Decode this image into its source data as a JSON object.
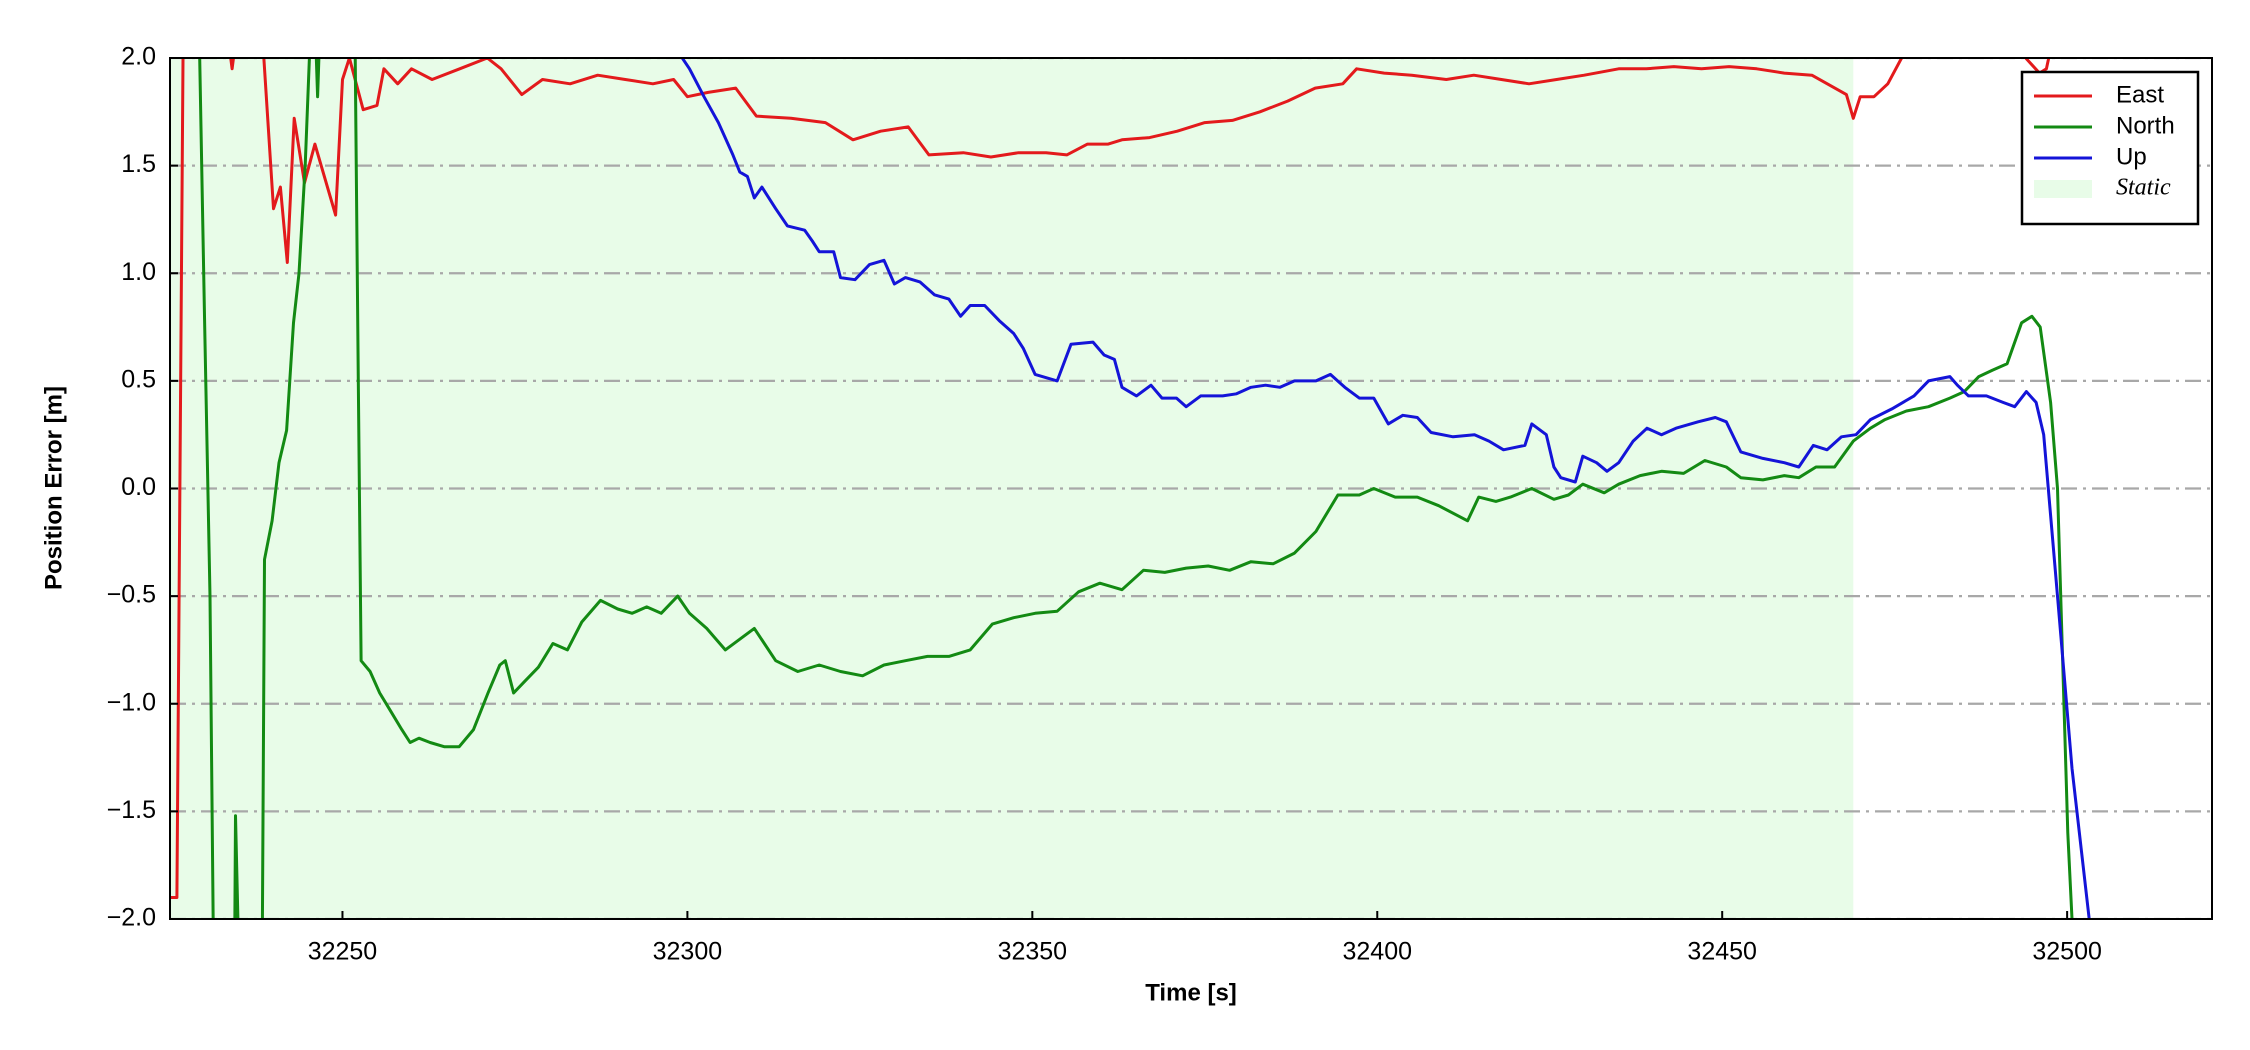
{
  "chart_data": {
    "type": "line",
    "xlabel": "Time [s]",
    "ylabel": "Position Error [m]",
    "xlim": [
      32225,
      32521
    ],
    "ylim": [
      -2,
      2
    ],
    "xticks": [
      32250,
      32300,
      32350,
      32400,
      32450,
      32500
    ],
    "yticks": [
      {
        "value": -2,
        "label": "−2.0"
      },
      {
        "value": -1.5,
        "label": "−1.5"
      },
      {
        "value": -1,
        "label": "−1.0"
      },
      {
        "value": -0.5,
        "label": "−0.5"
      },
      {
        "value": 0,
        "label": "0.0"
      },
      {
        "value": 0.5,
        "label": "0.5"
      },
      {
        "value": 1,
        "label": "1.0"
      },
      {
        "value": 1.5,
        "label": "1.5"
      },
      {
        "value": 2,
        "label": "2.0"
      }
    ],
    "grid": true,
    "legend": "upper right",
    "shaded_regions": [
      {
        "name": "Static",
        "x": [
          32225,
          32469
        ],
        "color": "#e8fce8"
      }
    ],
    "series": [
      {
        "name": "East",
        "color": "#e31a1c",
        "x": [
          32224,
          32226,
          32227,
          32233,
          32234,
          32235,
          32238,
          32240,
          32241,
          32242,
          32243,
          32244.5,
          32246,
          32249,
          32250,
          32251,
          32253,
          32255,
          32256,
          32258,
          32260,
          32263,
          32267,
          32271,
          32273,
          32276,
          32279,
          32283,
          32287,
          32291,
          32295,
          32298,
          32300,
          32303,
          32307,
          32310,
          32315,
          32320,
          32324,
          32328,
          32332,
          32335,
          32340,
          32344,
          32348,
          32352,
          32355,
          32358,
          32361,
          32363,
          32367,
          32371,
          32375,
          32379,
          32383,
          32387,
          32391,
          32395,
          32397,
          32401,
          32405,
          32410,
          32414,
          32418,
          32422,
          32426,
          32430,
          32435,
          32439,
          32443,
          32447,
          32451,
          32455,
          32459,
          32463,
          32468,
          32469,
          32470,
          32472,
          32474,
          32476,
          32478,
          32493,
          32494,
          32496,
          32497,
          32498,
          32500
        ],
        "values": [
          -1.9,
          -1.9,
          2.5,
          2.2,
          1.95,
          2.2,
          2.3,
          1.3,
          1.4,
          1.05,
          1.72,
          1.42,
          1.6,
          1.27,
          1.9,
          2.0,
          1.76,
          1.78,
          1.95,
          1.88,
          1.95,
          1.9,
          1.95,
          2.0,
          1.95,
          1.83,
          1.9,
          1.88,
          1.92,
          1.9,
          1.88,
          1.9,
          1.82,
          1.84,
          1.86,
          1.73,
          1.72,
          1.7,
          1.62,
          1.66,
          1.68,
          1.55,
          1.56,
          1.54,
          1.56,
          1.56,
          1.55,
          1.6,
          1.6,
          1.62,
          1.63,
          1.66,
          1.7,
          1.71,
          1.75,
          1.8,
          1.86,
          1.88,
          1.95,
          1.93,
          1.92,
          1.9,
          1.92,
          1.9,
          1.88,
          1.9,
          1.92,
          1.95,
          1.95,
          1.96,
          1.95,
          1.96,
          1.95,
          1.93,
          1.92,
          1.83,
          1.72,
          1.82,
          1.82,
          1.88,
          2.0,
          2.3,
          2.2,
          2.0,
          1.93,
          1.95,
          2.1,
          2.5
        ]
      },
      {
        "name": "North",
        "color": "#138a13",
        "x": [
          32228.9,
          32229.3,
          32230,
          32230.8,
          32231.4,
          32234.3,
          32234.5,
          32235.2,
          32238.3,
          32238.7,
          32239.8,
          32240.8,
          32241.9,
          32242.9,
          32243.7,
          32244.6,
          32245.2,
          32246,
          32246.4,
          32247.1,
          32251.7,
          32252.3,
          32252.7,
          32254.0,
          32255.4,
          32256.9,
          32258.6,
          32259.8,
          32261.1,
          32262.7,
          32264.8,
          32266.9,
          32269.0,
          32271.1,
          32272.8,
          32273.6,
          32274.8,
          32276.3,
          32278.4,
          32280.5,
          32282.6,
          32284.7,
          32287.4,
          32289.9,
          32292.0,
          32294.1,
          32296.2,
          32298.6,
          32300.3,
          32302.8,
          32305.5,
          32307.6,
          32309.7,
          32312.8,
          32316.0,
          32319.1,
          32322.2,
          32325.4,
          32328.5,
          32331.6,
          32334.8,
          32337.9,
          32341.0,
          32344.2,
          32347.3,
          32350.4,
          32353.6,
          32356.7,
          32359.8,
          32363.0,
          32366.1,
          32369.2,
          32372.3,
          32375.5,
          32378.6,
          32381.7,
          32384.9,
          32388.0,
          32391.1,
          32394.3,
          32397.4,
          32399.5,
          32402.6,
          32405.8,
          32408.9,
          32413.1,
          32414.7,
          32417.2,
          32419.3,
          32422.4,
          32425.6,
          32427.7,
          32429.8,
          32432.9,
          32435.0,
          32438.1,
          32441.2,
          32444.4,
          32447.5,
          32450.6,
          32452.7,
          32455.9,
          32459.0,
          32461.1,
          32463.6,
          32466.3,
          32469.0,
          32471.5,
          32473.6,
          32476.7,
          32479.9,
          32483.0,
          32485.1,
          32487.2,
          32489.2,
          32491.3,
          32493.4,
          32494.9,
          32496.1,
          32497.6,
          32498.6,
          32500.1,
          32500.7
        ],
        "values": [
          2.5,
          2.0,
          0.8,
          -0.5,
          -2.5,
          -2.5,
          -1.52,
          -2.5,
          -2.5,
          -0.33,
          -0.15,
          0.12,
          0.27,
          0.77,
          1.0,
          1.5,
          2.0,
          2.2,
          1.82,
          2.5,
          2.5,
          0.5,
          -0.8,
          -0.85,
          -0.95,
          -1.03,
          -1.12,
          -1.18,
          -1.16,
          -1.18,
          -1.2,
          -1.2,
          -1.12,
          -0.95,
          -0.82,
          -0.8,
          -0.95,
          -0.9,
          -0.83,
          -0.72,
          -0.75,
          -0.62,
          -0.52,
          -0.56,
          -0.58,
          -0.55,
          -0.58,
          -0.5,
          -0.58,
          -0.65,
          -0.75,
          -0.7,
          -0.65,
          -0.8,
          -0.85,
          -0.82,
          -0.85,
          -0.87,
          -0.82,
          -0.8,
          -0.78,
          -0.78,
          -0.75,
          -0.63,
          -0.6,
          -0.58,
          -0.57,
          -0.48,
          -0.44,
          -0.47,
          -0.38,
          -0.39,
          -0.37,
          -0.36,
          -0.38,
          -0.34,
          -0.35,
          -0.3,
          -0.2,
          -0.03,
          -0.03,
          0.0,
          -0.04,
          -0.04,
          -0.08,
          -0.15,
          -0.04,
          -0.06,
          -0.04,
          0.0,
          -0.05,
          -0.03,
          0.02,
          -0.02,
          0.02,
          0.06,
          0.08,
          0.07,
          0.13,
          0.1,
          0.05,
          0.04,
          0.06,
          0.05,
          0.1,
          0.1,
          0.22,
          0.28,
          0.32,
          0.36,
          0.38,
          0.42,
          0.45,
          0.52,
          0.55,
          0.58,
          0.77,
          0.8,
          0.75,
          0.4,
          0.0,
          -1.6,
          -2.0
        ]
      },
      {
        "name": "Up",
        "color": "#1414d8",
        "x": [
          32298.2,
          32300.3,
          32302.4,
          32304.5,
          32306.6,
          32307.6,
          32308.7,
          32309.7,
          32310.8,
          32312.8,
          32314.5,
          32317.0,
          32318.1,
          32319.1,
          32321.2,
          32322.2,
          32324.3,
          32326.4,
          32328.5,
          32330.0,
          32331.6,
          32333.7,
          32335.8,
          32337.9,
          32339.6,
          32341.0,
          32343.1,
          32345.2,
          32347.3,
          32348.7,
          32350.4,
          32353.6,
          32355.6,
          32358.8,
          32360.4,
          32361.9,
          32363.0,
          32365.1,
          32367.2,
          32368.8,
          32370.9,
          32372.3,
          32374.4,
          32377.6,
          32379.6,
          32381.7,
          32383.8,
          32385.9,
          32388.0,
          32391.1,
          32393.2,
          32395.3,
          32397.4,
          32399.5,
          32401.6,
          32403.7,
          32405.8,
          32407.8,
          32411.0,
          32414.1,
          32416.2,
          32418.3,
          32421.4,
          32422.4,
          32424.5,
          32425.6,
          32426.6,
          32428.7,
          32429.8,
          32431.8,
          32433.3,
          32435.0,
          32437.1,
          32439.1,
          32441.2,
          32443.3,
          32446.5,
          32449.0,
          32450.6,
          32452.7,
          32455.9,
          32459.0,
          32461.1,
          32463.2,
          32465.2,
          32467.3,
          32469.4,
          32471.5,
          32474.6,
          32477.8,
          32479.9,
          32483.0,
          32484.1,
          32485.7,
          32488.3,
          32490.7,
          32492.4,
          32494.1,
          32495.5,
          32496.6,
          32498.6,
          32500.7,
          32503.2,
          32503.9
        ],
        "values": [
          2.05,
          1.95,
          1.82,
          1.7,
          1.55,
          1.47,
          1.45,
          1.35,
          1.4,
          1.3,
          1.22,
          1.2,
          1.15,
          1.1,
          1.1,
          0.98,
          0.97,
          1.04,
          1.06,
          0.95,
          0.98,
          0.96,
          0.9,
          0.88,
          0.8,
          0.85,
          0.85,
          0.78,
          0.72,
          0.65,
          0.53,
          0.5,
          0.67,
          0.68,
          0.62,
          0.6,
          0.47,
          0.43,
          0.48,
          0.42,
          0.42,
          0.38,
          0.43,
          0.43,
          0.44,
          0.47,
          0.48,
          0.47,
          0.5,
          0.5,
          0.53,
          0.47,
          0.42,
          0.42,
          0.3,
          0.34,
          0.33,
          0.26,
          0.24,
          0.25,
          0.22,
          0.18,
          0.2,
          0.3,
          0.25,
          0.1,
          0.05,
          0.03,
          0.15,
          0.12,
          0.08,
          0.12,
          0.22,
          0.28,
          0.25,
          0.28,
          0.31,
          0.33,
          0.31,
          0.17,
          0.14,
          0.12,
          0.1,
          0.2,
          0.18,
          0.24,
          0.25,
          0.32,
          0.37,
          0.43,
          0.5,
          0.52,
          0.48,
          0.43,
          0.43,
          0.4,
          0.38,
          0.45,
          0.4,
          0.25,
          -0.5,
          -1.3,
          -2.0,
          -2.2
        ]
      }
    ]
  }
}
